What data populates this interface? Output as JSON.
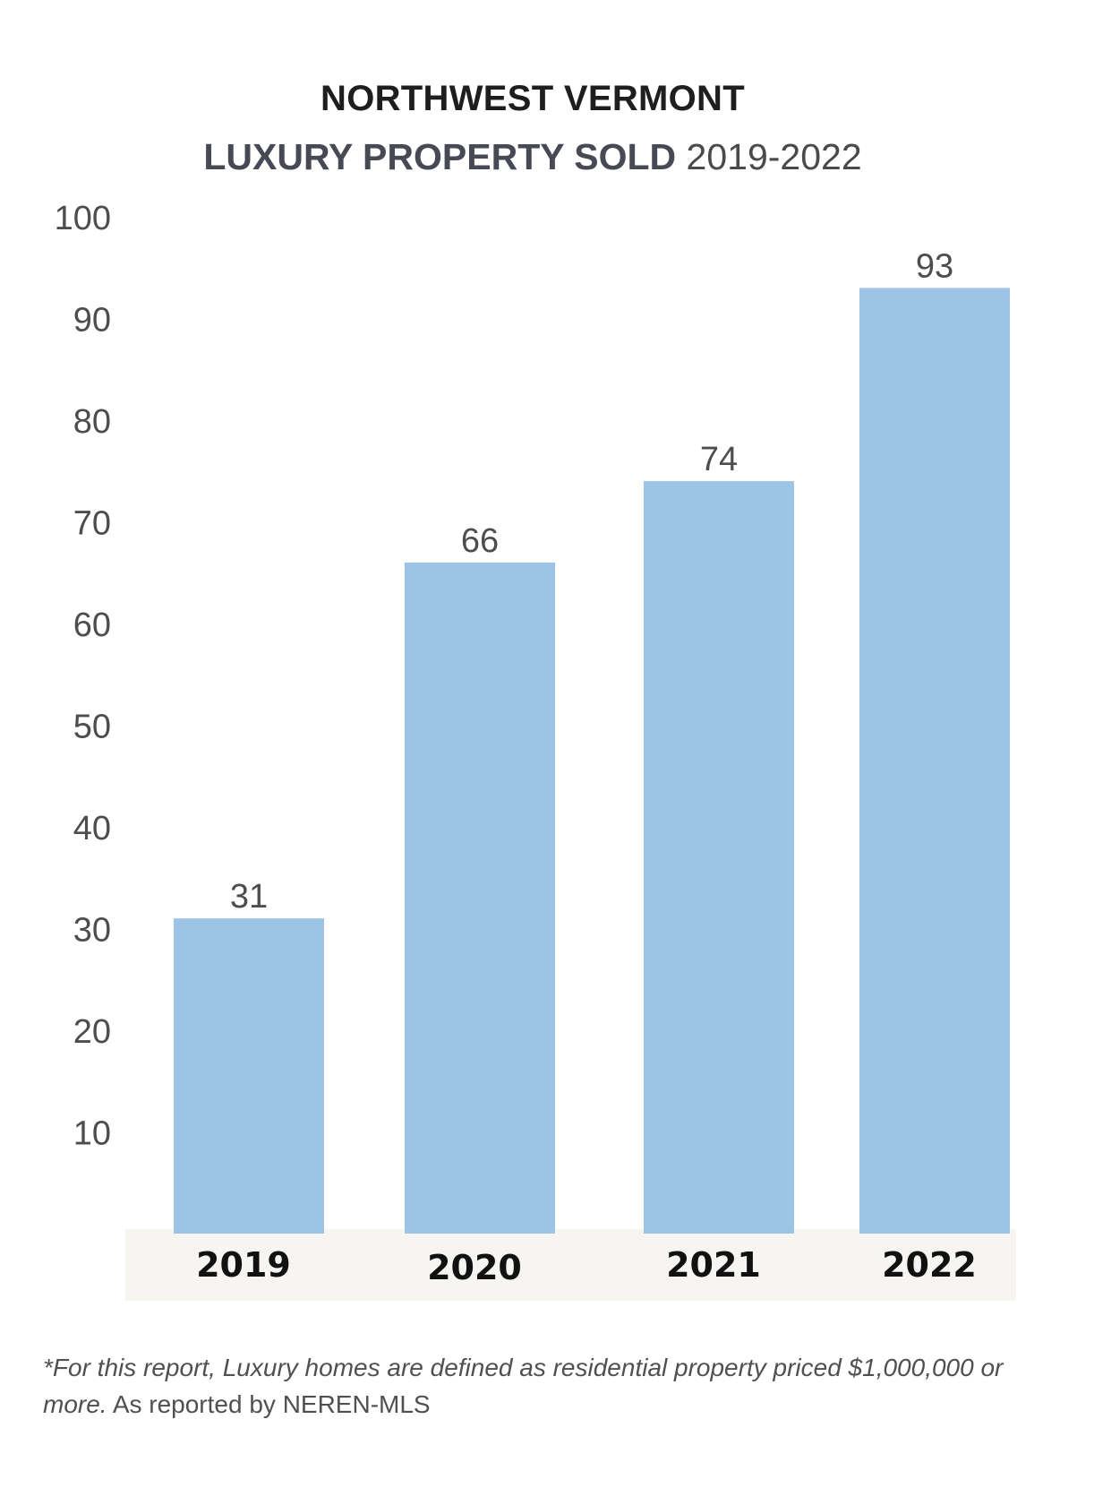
{
  "chart_data": {
    "type": "bar",
    "title": "NORTHWEST VERMONT",
    "subtitle_bold": "LUXURY PROPERTY SOLD",
    "subtitle_light": "2019-2022",
    "categories": [
      "2019",
      "2020",
      "2021",
      "2022"
    ],
    "values": [
      31,
      66,
      74,
      93
    ],
    "ylim": [
      0,
      100
    ],
    "yticks": [
      10,
      20,
      30,
      40,
      50,
      60,
      70,
      80,
      90,
      100
    ],
    "grid": false,
    "bar_color": "#9dc3e5",
    "axis_band_color": "#f6f5f1",
    "xlabel": "",
    "ylabel": ""
  },
  "footnote": {
    "italic_text": "*For this report, Luxury homes are defined as residential property priced $1,000,000 or more.",
    "regular_text": " As reported by NEREN-MLS"
  }
}
